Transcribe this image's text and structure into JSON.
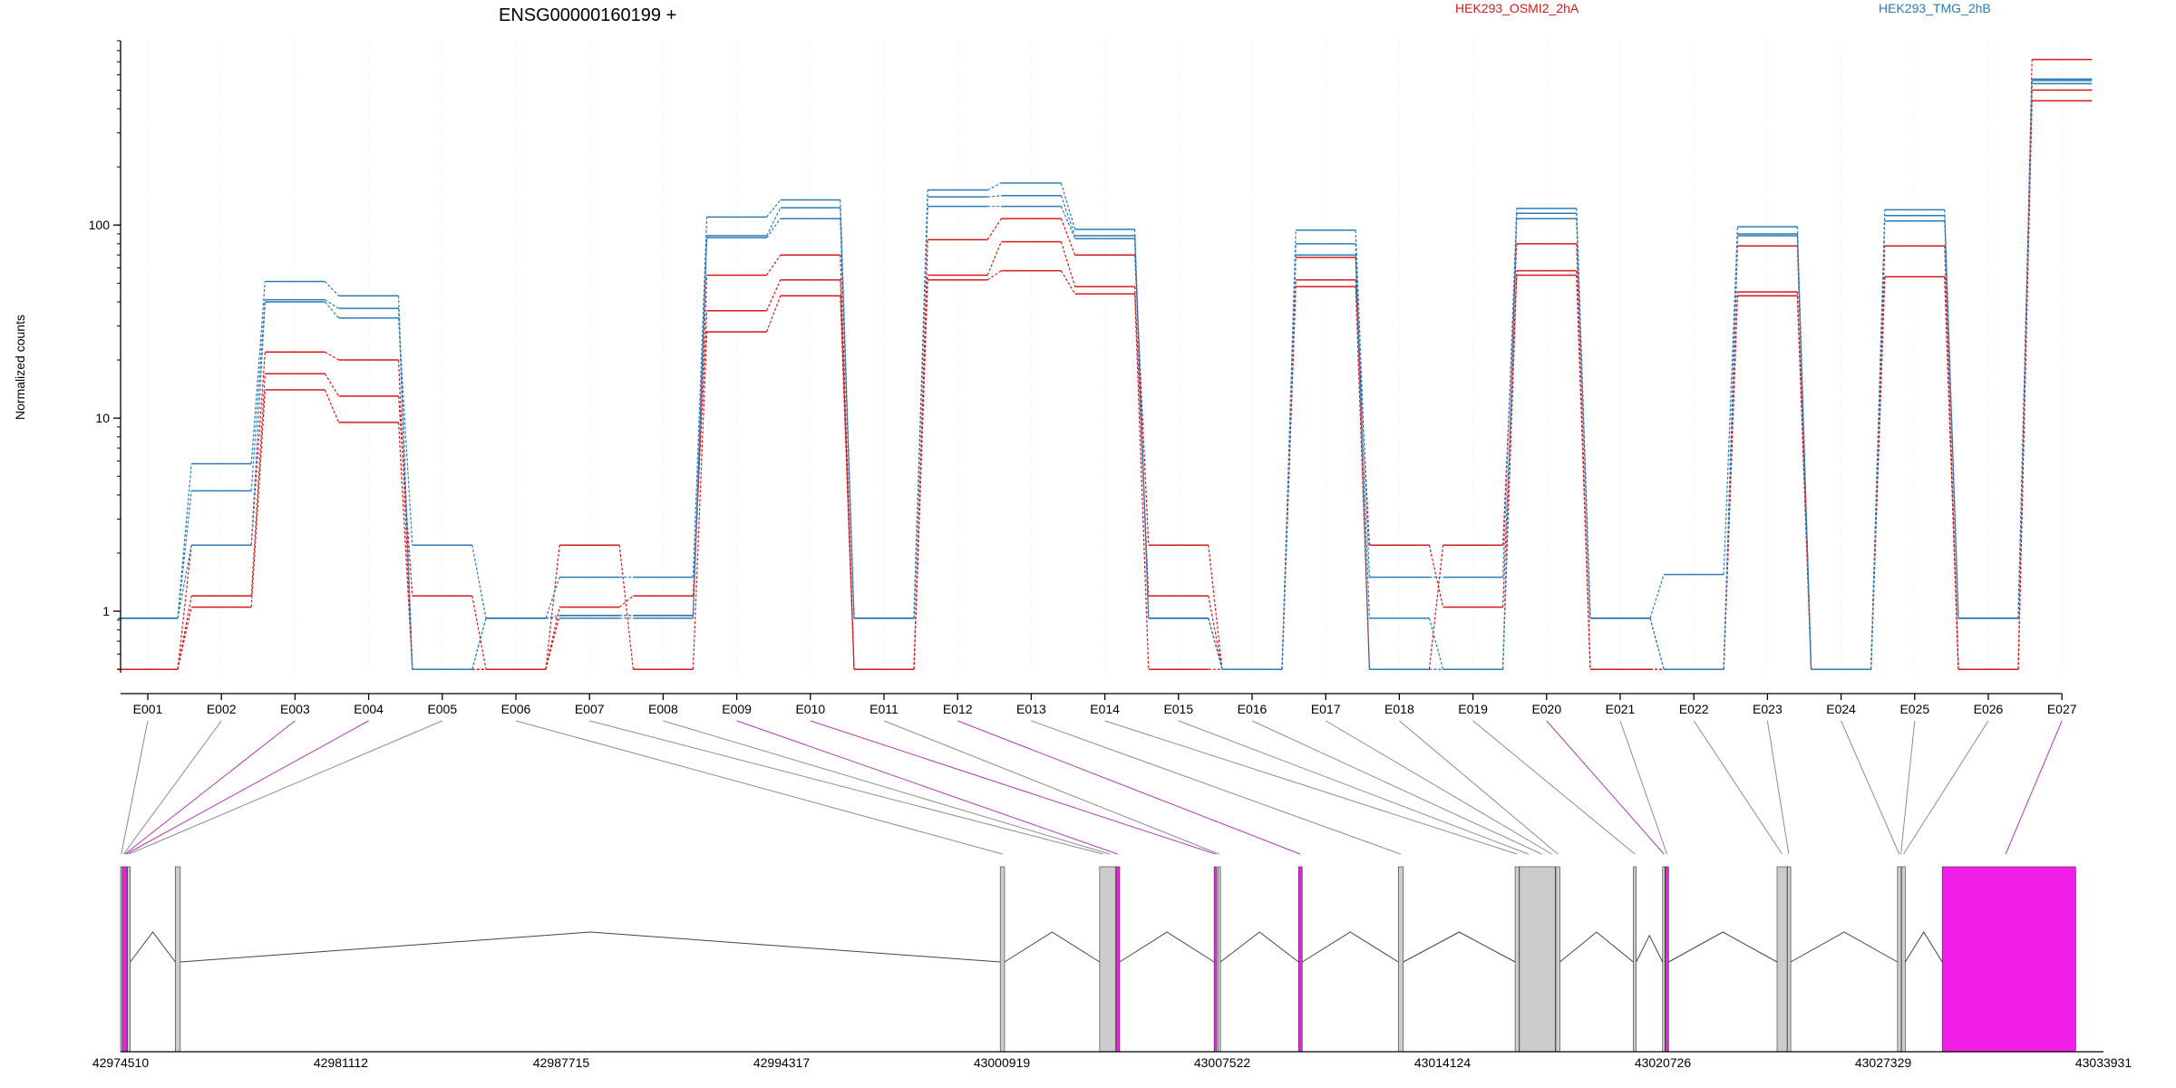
{
  "chart_data": {
    "type": "line",
    "title": "ENSG00000160199 +",
    "ylabel": "Normalized counts",
    "xlabel": "",
    "y_scale": "log",
    "ylim": [
      0.48,
      900
    ],
    "y_ticks": [
      1,
      10,
      100
    ],
    "y_tick_labels": [
      "1",
      "10",
      "100"
    ],
    "grid": "light vertical lines at exon midpoints",
    "legend_placement": "top (above plot)",
    "legend": [
      {
        "label": "HEK293_OSMI2_2hA",
        "color": "#d7191c"
      },
      {
        "label": "HEK293_TMG_2hB",
        "color": "#2c7bb6"
      }
    ],
    "categories": [
      "E001",
      "E002",
      "E003",
      "E004",
      "E005",
      "E006",
      "E007",
      "E008",
      "E009",
      "E010",
      "E011",
      "E012",
      "E013",
      "E014",
      "E015",
      "E016",
      "E017",
      "E018",
      "E019",
      "E020",
      "E021",
      "E022",
      "E023",
      "E024",
      "E025",
      "E026",
      "E027"
    ],
    "series": [
      {
        "group": "HEK293_OSMI2_2hA",
        "color": "#d7191c",
        "values": [
          0.5,
          1.05,
          14,
          9.5,
          0.5,
          0.5,
          2.2,
          0.5,
          28,
          43,
          0.5,
          52,
          58,
          44,
          0.5,
          0.5,
          48,
          0.5,
          0.5,
          55,
          0.5,
          0.5,
          43,
          0.5,
          54,
          0.5,
          440
        ]
      },
      {
        "group": "HEK293_OSMI2_2hA",
        "color": "#d7191c",
        "values": [
          0.5,
          1.2,
          17,
          13,
          1.2,
          0.5,
          1.05,
          1.2,
          36,
          52,
          0.5,
          55,
          82,
          48,
          1.2,
          0.5,
          52,
          2.2,
          1.05,
          58,
          0.5,
          0.5,
          45,
          0.5,
          78,
          0.5,
          500
        ]
      },
      {
        "group": "HEK293_OSMI2_2hA",
        "color": "#d7191c",
        "values": [
          0.5,
          2.2,
          22,
          20,
          0.5,
          0.5,
          0.95,
          0.95,
          55,
          70,
          0.5,
          84,
          108,
          70,
          2.2,
          0.5,
          68,
          0.5,
          2.2,
          80,
          0.5,
          0.5,
          78,
          0.5,
          54,
          0.5,
          720
        ]
      },
      {
        "group": "HEK293_TMG_2hB",
        "color": "#2c7bb6",
        "values": [
          0.92,
          2.2,
          40,
          33,
          2.2,
          0.92,
          0.92,
          0.92,
          86,
          108,
          0.92,
          125,
          125,
          85,
          0.92,
          0.5,
          70,
          0.92,
          0.5,
          108,
          0.92,
          0.5,
          88,
          0.5,
          105,
          0.92,
          540
        ]
      },
      {
        "group": "HEK293_TMG_2hB",
        "color": "#2c7bb6",
        "values": [
          0.92,
          4.2,
          41,
          37,
          0.5,
          0.92,
          0.95,
          0.95,
          88,
          123,
          0.92,
          140,
          142,
          88,
          0.92,
          0.5,
          80,
          0.5,
          0.5,
          115,
          0.92,
          0.5,
          90,
          0.5,
          112,
          0.92,
          560
        ]
      },
      {
        "group": "HEK293_TMG_2hB",
        "color": "#2c7bb6",
        "values": [
          0.92,
          5.8,
          51,
          43,
          0.5,
          0.92,
          1.5,
          1.5,
          110,
          135,
          0.92,
          152,
          165,
          95,
          0.92,
          0.5,
          94,
          1.5,
          1.5,
          122,
          0.92,
          1.55,
          98,
          0.5,
          120,
          0.92,
          570
        ]
      }
    ],
    "genomic_axis": {
      "tick_labels": [
        "42974510",
        "42981112",
        "42987715",
        "42994317",
        "43000919",
        "43007522",
        "43014124",
        "43020726",
        "43027329",
        "43033931"
      ]
    },
    "gene_model": {
      "exon_color": "#cccccc",
      "highlight_color": "#f01ee6",
      "exons": [
        {
          "start": 42974510,
          "end": 42974550,
          "highlight": false
        },
        {
          "start": 42974560,
          "end": 42974700,
          "highlight": true
        },
        {
          "start": 42974720,
          "end": 42974800,
          "highlight": false
        },
        {
          "start": 42976150,
          "end": 42976300,
          "highlight": false
        },
        {
          "start": 43000870,
          "end": 43001000,
          "highlight": false
        },
        {
          "start": 43003850,
          "end": 43004330,
          "highlight": false
        },
        {
          "start": 43004340,
          "end": 43004450,
          "highlight": true
        },
        {
          "start": 43007280,
          "end": 43007360,
          "highlight": true
        },
        {
          "start": 43007400,
          "end": 43007470,
          "highlight": false
        },
        {
          "start": 43009810,
          "end": 43009920,
          "highlight": true
        },
        {
          "start": 43012800,
          "end": 43012950,
          "highlight": false
        },
        {
          "start": 43016300,
          "end": 43016420,
          "highlight": false
        },
        {
          "start": 43016430,
          "end": 43017500,
          "highlight": false
        },
        {
          "start": 43017520,
          "end": 43017640,
          "highlight": false
        },
        {
          "start": 43019840,
          "end": 43019930,
          "highlight": false
        },
        {
          "start": 43020720,
          "end": 43020790,
          "highlight": false
        },
        {
          "start": 43020800,
          "end": 43020900,
          "highlight": true
        },
        {
          "start": 43024150,
          "end": 43024450,
          "highlight": false
        },
        {
          "start": 43024460,
          "end": 43024560,
          "highlight": false
        },
        {
          "start": 43027760,
          "end": 43027870,
          "highlight": false
        },
        {
          "start": 43027880,
          "end": 43027990,
          "highlight": false
        },
        {
          "start": 43029100,
          "end": 43033100,
          "highlight": true
        }
      ],
      "exon_bin_map": [
        {
          "bin": "E001",
          "pos": 42974530,
          "highlight": false
        },
        {
          "bin": "E002",
          "pos": 42974600,
          "highlight": false
        },
        {
          "bin": "E003",
          "pos": 42974640,
          "highlight": true
        },
        {
          "bin": "E004",
          "pos": 42974680,
          "highlight": true
        },
        {
          "bin": "E005",
          "pos": 42974760,
          "highlight": false
        },
        {
          "bin": "E006",
          "pos": 43000940,
          "highlight": false
        },
        {
          "bin": "E007",
          "pos": 43003950,
          "highlight": false
        },
        {
          "bin": "E008",
          "pos": 43004150,
          "highlight": false
        },
        {
          "bin": "E009",
          "pos": 43004390,
          "highlight": true
        },
        {
          "bin": "E010",
          "pos": 43007320,
          "highlight": true
        },
        {
          "bin": "E011",
          "pos": 43007430,
          "highlight": false
        },
        {
          "bin": "E012",
          "pos": 43009860,
          "highlight": true
        },
        {
          "bin": "E013",
          "pos": 43012870,
          "highlight": false
        },
        {
          "bin": "E014",
          "pos": 43016360,
          "highlight": false
        },
        {
          "bin": "E015",
          "pos": 43016700,
          "highlight": false
        },
        {
          "bin": "E016",
          "pos": 43017100,
          "highlight": false
        },
        {
          "bin": "E017",
          "pos": 43017400,
          "highlight": false
        },
        {
          "bin": "E018",
          "pos": 43017580,
          "highlight": false
        },
        {
          "bin": "E019",
          "pos": 43019890,
          "highlight": false
        },
        {
          "bin": "E020",
          "pos": 43020760,
          "highlight": true
        },
        {
          "bin": "E021",
          "pos": 43020850,
          "highlight": false
        },
        {
          "bin": "E022",
          "pos": 43024300,
          "highlight": false
        },
        {
          "bin": "E023",
          "pos": 43024500,
          "highlight": false
        },
        {
          "bin": "E024",
          "pos": 43027810,
          "highlight": false
        },
        {
          "bin": "E025",
          "pos": 43027860,
          "highlight": false
        },
        {
          "bin": "E026",
          "pos": 43027940,
          "highlight": false
        },
        {
          "bin": "E027",
          "pos": 43031000,
          "highlight": true
        }
      ]
    }
  }
}
